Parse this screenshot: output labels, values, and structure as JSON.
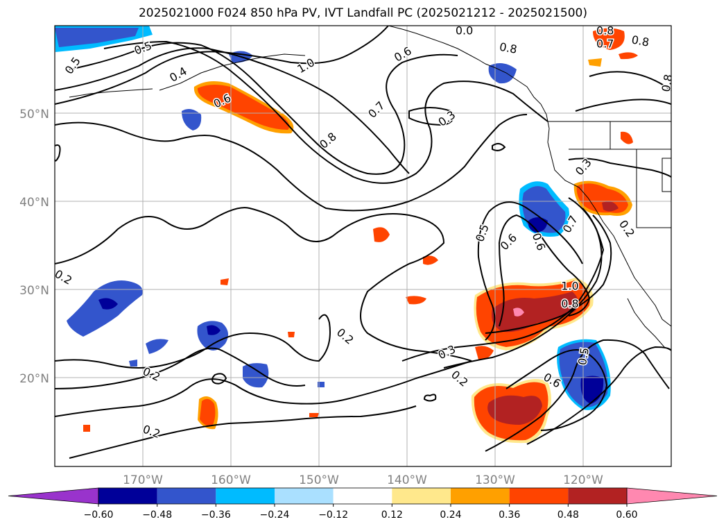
{
  "title": "2025021000 F024 850 hPa PV, IVT Landfall PC (2025021212 - 2025021500)",
  "map": {
    "lat_range": [
      10,
      60
    ],
    "lon_range": [
      -180,
      -110
    ],
    "gridlines": true,
    "lat_ticks": [
      {
        "value": 50,
        "label": "50°N"
      },
      {
        "value": 40,
        "label": "40°N"
      },
      {
        "value": 30,
        "label": "30°N"
      },
      {
        "value": 20,
        "label": "20°N"
      }
    ],
    "lon_ticks": [
      {
        "value": -170,
        "label": "170°W"
      },
      {
        "value": -160,
        "label": "160°W"
      },
      {
        "value": -150,
        "label": "150°W"
      },
      {
        "value": -140,
        "label": "140°W"
      },
      {
        "value": -130,
        "label": "130°W"
      },
      {
        "value": -120,
        "label": "120°W"
      }
    ],
    "tick_label_color": "#808080",
    "grid_color": "#b0b0b0"
  },
  "contour_labels": [
    {
      "text": "0.5",
      "lon": -178,
      "lat": 55.5,
      "rot": -55
    },
    {
      "text": "0.5",
      "lon": -170,
      "lat": 57.5,
      "rot": -20
    },
    {
      "text": "0.4",
      "lon": -166,
      "lat": 54.5,
      "rot": -30
    },
    {
      "text": "0.6",
      "lon": -161,
      "lat": 51.5,
      "rot": -25
    },
    {
      "text": "1.0",
      "lon": -151.5,
      "lat": 55.5,
      "rot": -30
    },
    {
      "text": "0.8",
      "lon": -149,
      "lat": 47,
      "rot": -40
    },
    {
      "text": "0.7",
      "lon": -143.5,
      "lat": 50.5,
      "rot": -45
    },
    {
      "text": "0.3",
      "lon": -135.5,
      "lat": 49.5,
      "rot": -35
    },
    {
      "text": "0.6",
      "lon": -140.5,
      "lat": 56.8,
      "rot": -30
    },
    {
      "text": "0.0",
      "lon": -133.5,
      "lat": 59.5,
      "rot": 0
    },
    {
      "text": "0.8",
      "lon": -128.5,
      "lat": 57.5,
      "rot": 10
    },
    {
      "text": "0.8",
      "lon": -117.5,
      "lat": 59.5,
      "rot": 0
    },
    {
      "text": "0.7",
      "lon": -117.5,
      "lat": 58,
      "rot": 0
    },
    {
      "text": "0.8",
      "lon": -113.5,
      "lat": 58.3,
      "rot": 10
    },
    {
      "text": "0.8",
      "lon": -110.5,
      "lat": 53.5,
      "rot": -80
    },
    {
      "text": "0.3",
      "lon": -120,
      "lat": 44,
      "rot": -50
    },
    {
      "text": "0.7",
      "lon": -121.5,
      "lat": 37.5,
      "rot": -60
    },
    {
      "text": "0.2",
      "lon": -115,
      "lat": 37,
      "rot": 55
    },
    {
      "text": "0.5",
      "lon": -131.5,
      "lat": 36.5,
      "rot": -70
    },
    {
      "text": "0.6",
      "lon": -128.5,
      "lat": 35.5,
      "rot": -45
    },
    {
      "text": "0.6",
      "lon": -125,
      "lat": 35.5,
      "rot": 70
    },
    {
      "text": "1.0",
      "lon": -121.5,
      "lat": 30.5,
      "rot": 0
    },
    {
      "text": "0.8",
      "lon": -121.5,
      "lat": 28.5,
      "rot": 0
    },
    {
      "text": "0.3",
      "lon": -135.5,
      "lat": 23,
      "rot": -25
    },
    {
      "text": "0.2",
      "lon": -134,
      "lat": 20,
      "rot": 40
    },
    {
      "text": "0.6",
      "lon": -123.5,
      "lat": 19.8,
      "rot": 30
    },
    {
      "text": "0.5",
      "lon": -120,
      "lat": 22.5,
      "rot": -80
    },
    {
      "text": "0.2",
      "lon": -179,
      "lat": 31.5,
      "rot": 30
    },
    {
      "text": "0.2",
      "lon": -147,
      "lat": 24.8,
      "rot": 40
    },
    {
      "text": "0.2",
      "lon": -169,
      "lat": 20.5,
      "rot": 25
    },
    {
      "text": "0.2",
      "lon": -169,
      "lat": 14,
      "rot": 20
    }
  ],
  "colorbar": {
    "ticks": [
      "−0.60",
      "−0.48",
      "−0.36",
      "−0.24",
      "−0.12",
      "0.12",
      "0.24",
      "0.36",
      "0.48",
      "0.60"
    ],
    "colors": [
      "#9933cc",
      "#000099",
      "#3355cc",
      "#00bbff",
      "#aae0ff",
      "#ffffff",
      "#ffe88c",
      "#ffa000",
      "#ff4400",
      "#b22222",
      "#ff88b0"
    ]
  },
  "legend": {
    "pv_colors": {
      "blue_dark": "#000099",
      "blue_mid": "#3355cc",
      "cyan": "#00bbff",
      "red": "#ff4400",
      "orange": "#ffa000",
      "crimson": "#b22222",
      "pink": "#ff88b0"
    }
  }
}
